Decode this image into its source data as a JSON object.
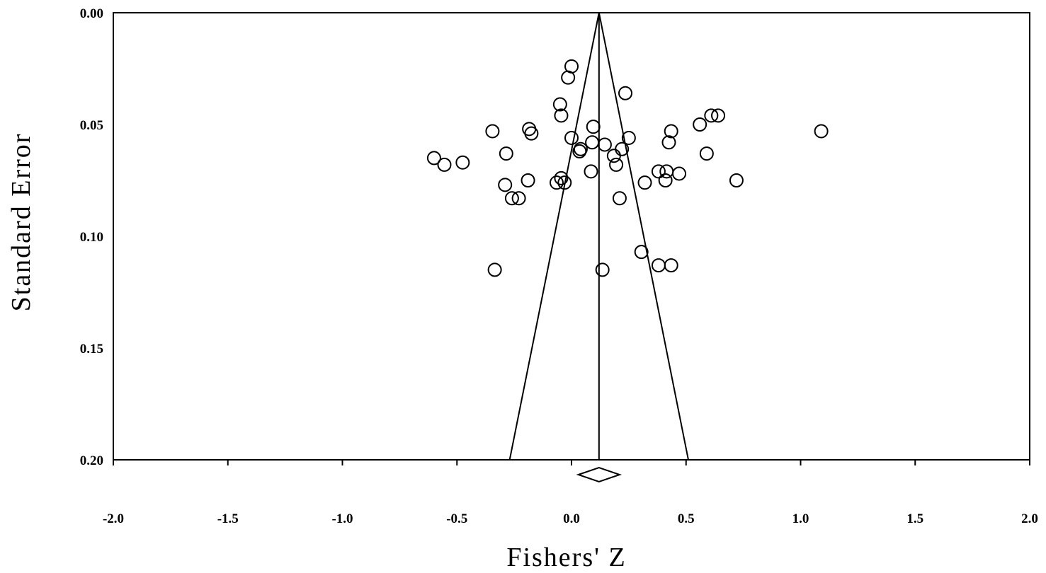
{
  "chart_data": {
    "type": "scatter",
    "title": "",
    "xlabel": "Fishers' Z",
    "ylabel": "Standard Error",
    "xlim": [
      -2.0,
      2.0
    ],
    "ylim": [
      0.0,
      0.2
    ],
    "y_inverted": true,
    "grid": false,
    "x_ticks": [
      "-2.0",
      "-1.5",
      "-1.0",
      "-0.5",
      "0.0",
      "0.5",
      "1.0",
      "1.5",
      "2.0"
    ],
    "y_ticks": [
      "0.00",
      "0.05",
      "0.10",
      "0.15",
      "0.20"
    ],
    "pooled_effect": 0.12,
    "funnel_limits_at_max_se": [
      -0.27,
      0.51
    ],
    "summary_diamond": {
      "center": 0.12,
      "lower": 0.03,
      "upper": 0.21
    },
    "points": [
      {
        "x": 0.0,
        "y": 0.024
      },
      {
        "x": -0.015,
        "y": 0.029
      },
      {
        "x": 0.235,
        "y": 0.036
      },
      {
        "x": -0.05,
        "y": 0.041
      },
      {
        "x": -0.045,
        "y": 0.046
      },
      {
        "x": 0.61,
        "y": 0.046
      },
      {
        "x": 0.64,
        "y": 0.046
      },
      {
        "x": 0.56,
        "y": 0.05
      },
      {
        "x": -0.345,
        "y": 0.053
      },
      {
        "x": -0.185,
        "y": 0.052
      },
      {
        "x": -0.175,
        "y": 0.054
      },
      {
        "x": 0.095,
        "y": 0.051
      },
      {
        "x": 0.435,
        "y": 0.053
      },
      {
        "x": 1.09,
        "y": 0.053
      },
      {
        "x": 0.0,
        "y": 0.056
      },
      {
        "x": 0.25,
        "y": 0.056
      },
      {
        "x": 0.09,
        "y": 0.058
      },
      {
        "x": 0.425,
        "y": 0.058
      },
      {
        "x": 0.145,
        "y": 0.059
      },
      {
        "x": 0.04,
        "y": 0.061
      },
      {
        "x": 0.035,
        "y": 0.062
      },
      {
        "x": 0.22,
        "y": 0.061
      },
      {
        "x": -0.285,
        "y": 0.063
      },
      {
        "x": 0.59,
        "y": 0.063
      },
      {
        "x": 0.185,
        "y": 0.064
      },
      {
        "x": -0.6,
        "y": 0.065
      },
      {
        "x": -0.555,
        "y": 0.068
      },
      {
        "x": -0.475,
        "y": 0.067
      },
      {
        "x": 0.195,
        "y": 0.068
      },
      {
        "x": 0.085,
        "y": 0.071
      },
      {
        "x": 0.38,
        "y": 0.071
      },
      {
        "x": 0.415,
        "y": 0.071
      },
      {
        "x": 0.47,
        "y": 0.072
      },
      {
        "x": -0.045,
        "y": 0.074
      },
      {
        "x": -0.19,
        "y": 0.075
      },
      {
        "x": 0.72,
        "y": 0.075
      },
      {
        "x": -0.065,
        "y": 0.076
      },
      {
        "x": -0.03,
        "y": 0.076
      },
      {
        "x": 0.32,
        "y": 0.076
      },
      {
        "x": 0.41,
        "y": 0.075
      },
      {
        "x": -0.29,
        "y": 0.077
      },
      {
        "x": -0.26,
        "y": 0.083
      },
      {
        "x": -0.23,
        "y": 0.083
      },
      {
        "x": 0.21,
        "y": 0.083
      },
      {
        "x": 0.305,
        "y": 0.107
      },
      {
        "x": 0.38,
        "y": 0.113
      },
      {
        "x": 0.435,
        "y": 0.113
      },
      {
        "x": -0.335,
        "y": 0.115
      },
      {
        "x": 0.135,
        "y": 0.115
      }
    ]
  }
}
